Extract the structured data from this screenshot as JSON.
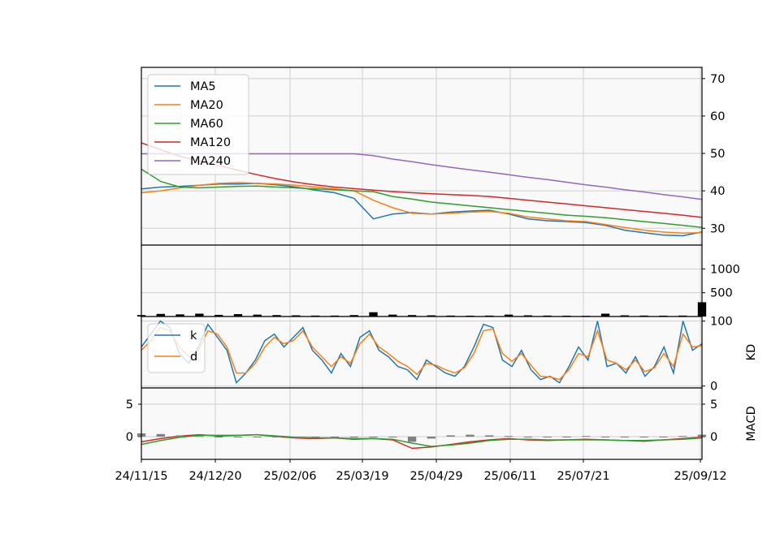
{
  "chart_data": {
    "type": "line",
    "x_tick_labels": [
      "24/11/15",
      "24/12/20",
      "25/02/06",
      "25/03/19",
      "25/04/29",
      "25/06/11",
      "25/07/21",
      "25/09/12"
    ],
    "x_range": [
      "24/11/15",
      "25/09/12"
    ],
    "panels": [
      {
        "name": "price",
        "ylabel": "",
        "ylim": [
          25.5,
          73
        ],
        "y_ticks": [
          30,
          40,
          50,
          60,
          70
        ],
        "legend": "top-left",
        "series": [
          {
            "name": "MA5",
            "color": "#1f77b4",
            "values": [
              40.5,
              41.0,
              41.2,
              41.5,
              41.8,
              41.8,
              42.0,
              41.6,
              41.0,
              40.2,
              39.5,
              38.0,
              32.5,
              33.8,
              34.2,
              33.8,
              34.3,
              34.6,
              34.8,
              33.8,
              32.5,
              32.0,
              31.8,
              31.5,
              30.8,
              29.5,
              28.8,
              28.2,
              28.0,
              29.0
            ]
          },
          {
            "name": "MA20",
            "color": "#ff7f0e",
            "values": [
              39.5,
              40.0,
              40.8,
              41.5,
              42.0,
              42.2,
              42.0,
              41.8,
              41.5,
              41.0,
              40.5,
              40.0,
              37.5,
              35.5,
              34.0,
              33.8,
              34.0,
              34.3,
              34.5,
              34.0,
              33.0,
              32.5,
              32.0,
              31.8,
              31.0,
              30.2,
              29.5,
              29.0,
              28.7,
              28.8
            ]
          },
          {
            "name": "MA60",
            "color": "#2ca02c",
            "values": [
              45.8,
              42.5,
              41.0,
              40.8,
              41.0,
              41.2,
              41.3,
              41.0,
              40.8,
              40.5,
              40.3,
              40.0,
              39.8,
              38.5,
              37.8,
              37.0,
              36.5,
              36.0,
              35.5,
              35.0,
              34.5,
              34.0,
              33.5,
              33.2,
              32.8,
              32.3,
              31.8,
              31.3,
              30.8,
              30.2
            ]
          },
          {
            "name": "MA120",
            "color": "#d62728",
            "values": [
              52.8,
              51.0,
              49.2,
              48.0,
              46.8,
              45.5,
              44.3,
              43.2,
              42.3,
              41.6,
              41.0,
              40.6,
              40.2,
              39.8,
              39.5,
              39.2,
              39.0,
              38.8,
              38.5,
              38.0,
              37.5,
              37.0,
              36.5,
              36.0,
              35.5,
              35.0,
              34.5,
              34.0,
              33.5,
              32.9
            ]
          },
          {
            "name": "MA240",
            "color": "#9467bd",
            "values": [
              49.9,
              49.9,
              49.9,
              49.9,
              49.9,
              49.9,
              49.9,
              49.9,
              49.9,
              49.9,
              49.9,
              49.9,
              49.4,
              48.5,
              47.8,
              47.0,
              46.3,
              45.6,
              45.0,
              44.3,
              43.6,
              43.0,
              42.3,
              41.6,
              41.0,
              40.3,
              39.7,
              39.0,
              38.4,
              37.7
            ]
          }
        ]
      },
      {
        "name": "volume",
        "ylabel": "",
        "ylim": [
          0,
          1500
        ],
        "y_ticks": [
          500,
          1000
        ],
        "series": [
          {
            "name": "",
            "color": "#000000",
            "values": [
              30,
              55,
              45,
              60,
              35,
              50,
              40,
              30,
              25,
              20,
              20,
              30,
              90,
              40,
              30,
              25,
              20,
              18,
              20,
              40,
              25,
              20,
              18,
              15,
              60,
              25,
              20,
              18,
              20,
              300
            ]
          }
        ]
      },
      {
        "name": "kd",
        "ylabel": "KD",
        "ylim": [
          -3,
          107
        ],
        "y_ticks": [
          0,
          100
        ],
        "legend": "top-left",
        "series": [
          {
            "name": "k",
            "color": "#1f77b4",
            "values": [
              60,
              80,
              100,
              90,
              50,
              35,
              60,
              95,
              75,
              55,
              5,
              20,
              40,
              70,
              80,
              60,
              75,
              90,
              55,
              40,
              20,
              50,
              30,
              75,
              85,
              55,
              45,
              30,
              25,
              10,
              40,
              30,
              20,
              15,
              30,
              60,
              95,
              90,
              40,
              30,
              55,
              25,
              10,
              15,
              5,
              30,
              60,
              40,
              100,
              30,
              35,
              20,
              45,
              15,
              30,
              60,
              20,
              100,
              55,
              65
            ]
          },
          {
            "name": "d",
            "color": "#ff7f0e",
            "values": [
              55,
              70,
              90,
              85,
              60,
              45,
              55,
              85,
              80,
              60,
              20,
              20,
              35,
              60,
              75,
              65,
              70,
              85,
              60,
              45,
              30,
              45,
              35,
              65,
              80,
              60,
              50,
              38,
              30,
              18,
              35,
              32,
              25,
              20,
              28,
              50,
              85,
              88,
              50,
              38,
              50,
              32,
              15,
              14,
              10,
              25,
              50,
              45,
              85,
              40,
              35,
              25,
              40,
              22,
              28,
              50,
              30,
              80,
              60,
              62
            ]
          }
        ]
      },
      {
        "name": "macd",
        "ylabel": "MACD",
        "ylim": [
          -3.5,
          7.5
        ],
        "y_ticks": [
          0,
          5
        ],
        "series": [
          {
            "name": "",
            "color": "#d62728",
            "values": [
              -0.8,
              -0.3,
              0.1,
              0.3,
              0.1,
              0.2,
              0.3,
              0.0,
              -0.2,
              -0.3,
              -0.2,
              -0.4,
              -0.3,
              -0.5,
              -1.8,
              -1.6,
              -1.2,
              -0.8,
              -0.5,
              -0.3,
              -0.5,
              -0.6,
              -0.5,
              -0.4,
              -0.5,
              -0.6,
              -0.7,
              -0.5,
              -0.3,
              -0.1
            ]
          },
          {
            "name": "",
            "color": "#2ca02c",
            "values": [
              -1.2,
              -0.6,
              -0.1,
              0.2,
              0.2,
              0.2,
              0.3,
              0.1,
              -0.1,
              -0.2,
              -0.2,
              -0.3,
              -0.3,
              -0.4,
              -1.0,
              -1.5,
              -1.3,
              -1.0,
              -0.6,
              -0.4,
              -0.4,
              -0.5,
              -0.5,
              -0.5,
              -0.5,
              -0.6,
              -0.6,
              -0.5,
              -0.4,
              -0.2
            ]
          },
          {
            "name": "",
            "color": "#808080",
            "values": [
              0.5,
              0.4,
              0.2,
              0.1,
              -0.1,
              0.0,
              0.0,
              -0.1,
              -0.1,
              -0.1,
              0.0,
              -0.1,
              -0.1,
              -0.1,
              -0.8,
              -0.3,
              0.2,
              0.3,
              0.2,
              0.1,
              -0.1,
              -0.1,
              0.0,
              0.1,
              0.0,
              0.0,
              -0.1,
              0.0,
              0.1,
              0.3
            ]
          }
        ]
      }
    ]
  }
}
